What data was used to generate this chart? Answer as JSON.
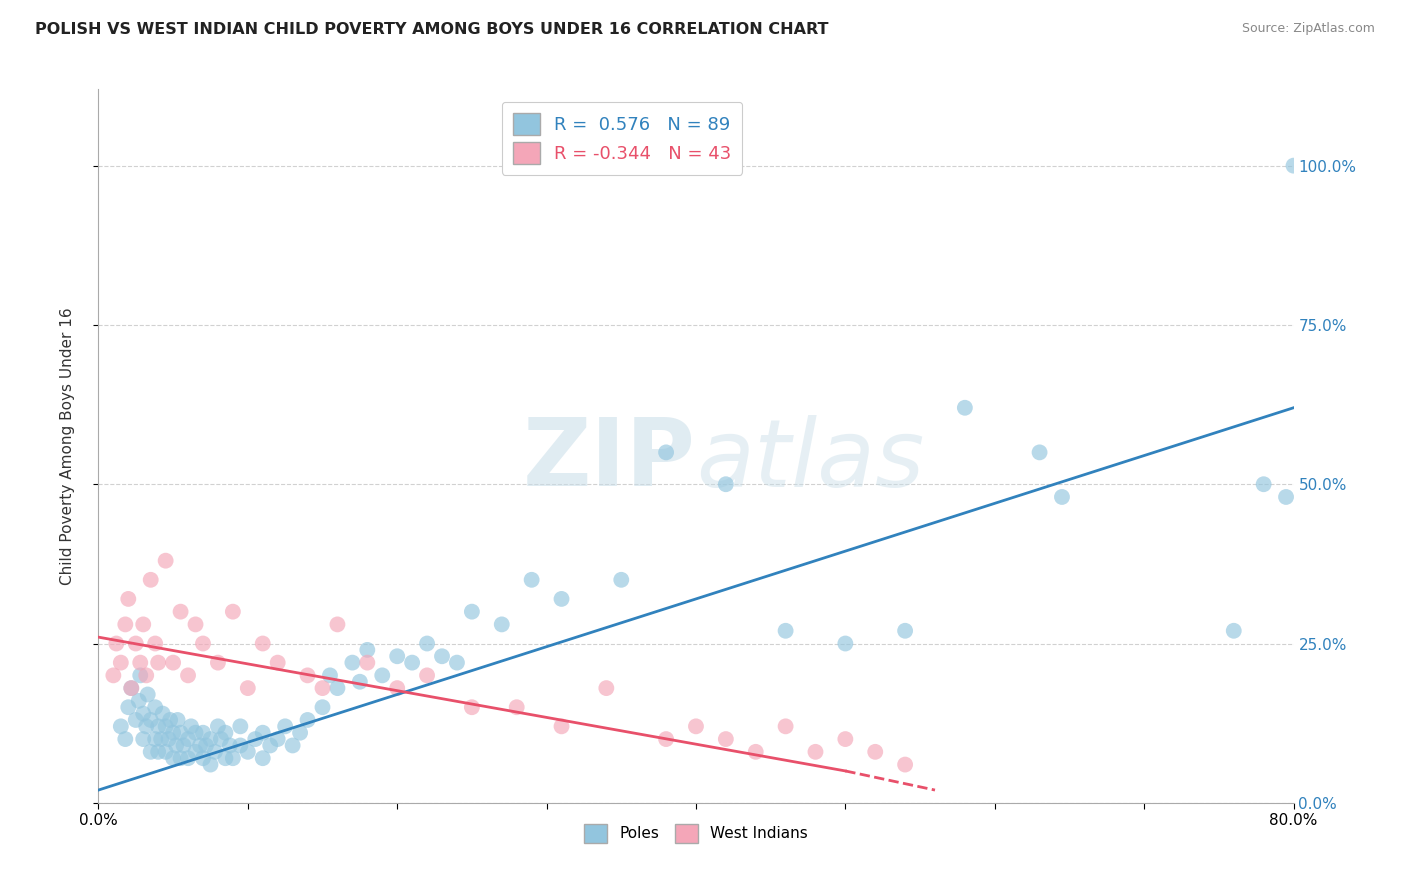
{
  "title": "POLISH VS WEST INDIAN CHILD POVERTY AMONG BOYS UNDER 16 CORRELATION CHART",
  "source": "Source: ZipAtlas.com",
  "ylabel": "Child Poverty Among Boys Under 16",
  "xlim": [
    0.0,
    0.8
  ],
  "ylim_max": 1.12,
  "yticks": [
    0.0,
    0.25,
    0.5,
    0.75,
    1.0
  ],
  "ytick_labels": [
    "0.0%",
    "25.0%",
    "50.0%",
    "75.0%",
    "100.0%"
  ],
  "xtick_labels": [
    "0.0%",
    "",
    "",
    "",
    "",
    "",
    "",
    "",
    "80.0%"
  ],
  "blue_R": 0.576,
  "blue_N": 89,
  "pink_R": -0.344,
  "pink_N": 43,
  "blue_scatter_color": "#92c5de",
  "pink_scatter_color": "#f4a6b8",
  "blue_line_color": "#3182bd",
  "pink_line_color": "#e8506a",
  "watermark_color": "#d8e8f0",
  "grid_color": "#cccccc",
  "blue_x": [
    0.015,
    0.018,
    0.02,
    0.022,
    0.025,
    0.027,
    0.028,
    0.03,
    0.03,
    0.032,
    0.033,
    0.035,
    0.035,
    0.038,
    0.038,
    0.04,
    0.04,
    0.042,
    0.043,
    0.045,
    0.045,
    0.047,
    0.048,
    0.05,
    0.05,
    0.052,
    0.053,
    0.055,
    0.055,
    0.057,
    0.06,
    0.06,
    0.062,
    0.065,
    0.065,
    0.068,
    0.07,
    0.07,
    0.072,
    0.075,
    0.075,
    0.078,
    0.08,
    0.082,
    0.085,
    0.085,
    0.088,
    0.09,
    0.095,
    0.095,
    0.1,
    0.105,
    0.11,
    0.11,
    0.115,
    0.12,
    0.125,
    0.13,
    0.135,
    0.14,
    0.15,
    0.155,
    0.16,
    0.17,
    0.175,
    0.18,
    0.19,
    0.2,
    0.21,
    0.22,
    0.23,
    0.24,
    0.25,
    0.27,
    0.29,
    0.31,
    0.35,
    0.38,
    0.42,
    0.46,
    0.5,
    0.54,
    0.58,
    0.63,
    0.645,
    0.76,
    0.78,
    0.795,
    0.8
  ],
  "blue_y": [
    0.12,
    0.1,
    0.15,
    0.18,
    0.13,
    0.16,
    0.2,
    0.1,
    0.14,
    0.12,
    0.17,
    0.08,
    0.13,
    0.1,
    0.15,
    0.08,
    0.12,
    0.1,
    0.14,
    0.08,
    0.12,
    0.1,
    0.13,
    0.07,
    0.11,
    0.09,
    0.13,
    0.07,
    0.11,
    0.09,
    0.07,
    0.1,
    0.12,
    0.08,
    0.11,
    0.09,
    0.07,
    0.11,
    0.09,
    0.06,
    0.1,
    0.08,
    0.12,
    0.1,
    0.07,
    0.11,
    0.09,
    0.07,
    0.09,
    0.12,
    0.08,
    0.1,
    0.07,
    0.11,
    0.09,
    0.1,
    0.12,
    0.09,
    0.11,
    0.13,
    0.15,
    0.2,
    0.18,
    0.22,
    0.19,
    0.24,
    0.2,
    0.23,
    0.22,
    0.25,
    0.23,
    0.22,
    0.3,
    0.28,
    0.35,
    0.32,
    0.35,
    0.55,
    0.5,
    0.27,
    0.25,
    0.27,
    0.62,
    0.55,
    0.48,
    0.27,
    0.5,
    0.48,
    1.0
  ],
  "pink_x": [
    0.01,
    0.012,
    0.015,
    0.018,
    0.02,
    0.022,
    0.025,
    0.028,
    0.03,
    0.032,
    0.035,
    0.038,
    0.04,
    0.045,
    0.05,
    0.055,
    0.06,
    0.065,
    0.07,
    0.08,
    0.09,
    0.1,
    0.11,
    0.12,
    0.14,
    0.15,
    0.16,
    0.18,
    0.2,
    0.22,
    0.25,
    0.28,
    0.31,
    0.34,
    0.38,
    0.4,
    0.42,
    0.44,
    0.46,
    0.48,
    0.5,
    0.52,
    0.54
  ],
  "pink_y": [
    0.2,
    0.25,
    0.22,
    0.28,
    0.32,
    0.18,
    0.25,
    0.22,
    0.28,
    0.2,
    0.35,
    0.25,
    0.22,
    0.38,
    0.22,
    0.3,
    0.2,
    0.28,
    0.25,
    0.22,
    0.3,
    0.18,
    0.25,
    0.22,
    0.2,
    0.18,
    0.28,
    0.22,
    0.18,
    0.2,
    0.15,
    0.15,
    0.12,
    0.18,
    0.1,
    0.12,
    0.1,
    0.08,
    0.12,
    0.08,
    0.1,
    0.08,
    0.06
  ],
  "blue_line_start_x": 0.0,
  "blue_line_start_y": 0.02,
  "blue_line_end_x": 0.8,
  "blue_line_end_y": 0.62,
  "pink_line_start_x": 0.0,
  "pink_line_start_y": 0.26,
  "pink_line_solid_end_x": 0.5,
  "pink_line_solid_end_y": 0.05,
  "pink_line_dash_end_x": 0.56,
  "pink_line_dash_end_y": 0.02
}
